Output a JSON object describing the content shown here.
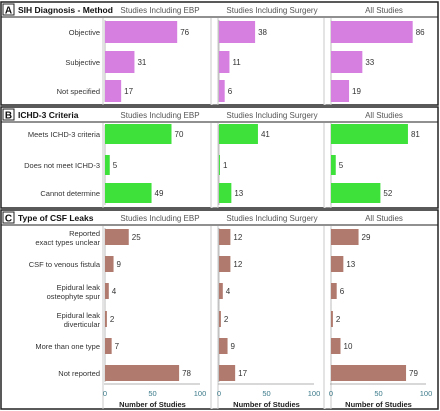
{
  "column_titles": [
    "Studies Including EBP",
    "Studies Including Surgery",
    "All Studies"
  ],
  "xlabel": "Number of Studies",
  "colors": {
    "A": "#d67fe0",
    "B": "#3ee03a",
    "C": "#b07a6e"
  },
  "chart_data": [
    {
      "panel": "A",
      "type": "bar",
      "title": "SIH Diagnosis - Method",
      "categories": [
        "Objective",
        "Subjective",
        "Not specified"
      ],
      "series": [
        {
          "name": "Studies Including EBP",
          "values": [
            76,
            31,
            17
          ]
        },
        {
          "name": "Studies Including Surgery",
          "values": [
            38,
            11,
            6
          ]
        },
        {
          "name": "All Studies",
          "values": [
            86,
            33,
            19
          ]
        }
      ],
      "xlim": [
        0,
        100
      ]
    },
    {
      "panel": "B",
      "type": "bar",
      "title": "ICHD-3 Criteria",
      "categories": [
        "Meets ICHD-3 criteria",
        "Does not meet ICHD-3",
        "Cannot determine"
      ],
      "series": [
        {
          "name": "Studies Including EBP",
          "values": [
            70,
            5,
            49
          ]
        },
        {
          "name": "Studies Including Surgery",
          "values": [
            41,
            1,
            13
          ]
        },
        {
          "name": "All Studies",
          "values": [
            81,
            5,
            52
          ]
        }
      ],
      "xlim": [
        0,
        100
      ]
    },
    {
      "panel": "C",
      "type": "bar",
      "title": "Type of CSF Leaks",
      "categories": [
        "Reported exact types unclear",
        "CSF to venous fistula",
        "Epidural leak osteophyte spur",
        "Epidural leak diverticular",
        "More than one type",
        "Not reported"
      ],
      "series": [
        {
          "name": "Studies Including EBP",
          "values": [
            25,
            9,
            4,
            2,
            7,
            78
          ]
        },
        {
          "name": "Studies Including Surgery",
          "values": [
            12,
            12,
            4,
            2,
            9,
            17
          ]
        },
        {
          "name": "All Studies",
          "values": [
            29,
            13,
            6,
            2,
            10,
            79
          ]
        }
      ],
      "xlim": [
        0,
        100
      ],
      "xticks": [
        0,
        50,
        100
      ],
      "xlabel": "Number of Studies"
    }
  ]
}
